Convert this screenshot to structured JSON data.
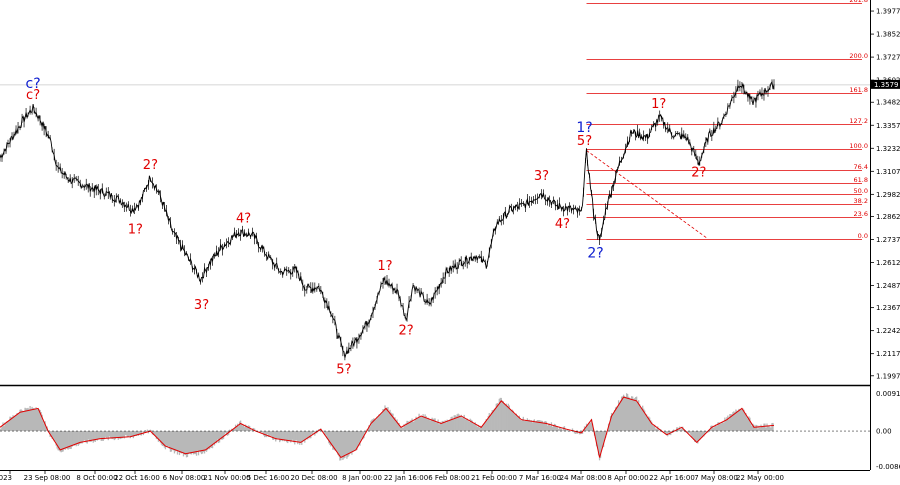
{
  "chart_data": {
    "type": "line",
    "colors": {
      "price": "#000000",
      "fib": "#e00000",
      "wave_red": "#e00000",
      "wave_blue": "#1020d0",
      "current_price_box": "#000000",
      "histogram": "#b8b8b8",
      "signal": "#e00000"
    },
    "price_axis": {
      "ticks": [
        "1.3977",
        "1.3852",
        "1.3727",
        "1.3602",
        "1.3482",
        "1.3357",
        "1.3232",
        "1.3107",
        "1.2982",
        "1.2862",
        "1.2737",
        "1.2612",
        "1.2487",
        "1.2367",
        "1.2242",
        "1.2117",
        "1.1997"
      ],
      "ylim": [
        1.1947,
        1.4037
      ],
      "current_price": "1.3579"
    },
    "time_axis": {
      "ticks": [
        "2023",
        "23 Sep 08:00",
        "8 Oct 00:00",
        "22 Oct 16:00",
        "6 Nov 08:00",
        "21 Nov 00:00",
        "5 Dec 16:00",
        "20 Dec 08:00",
        "8 Jan 00:00",
        "22 Jan 16:00",
        "6 Feb 08:00",
        "21 Feb 00:00",
        "7 Mar 16:00",
        "24 Mar 08:00",
        "8 Apr 00:00",
        "22 Apr 16:00",
        "7 May 08:00",
        "22 May 00:00"
      ],
      "xlim": [
        0,
        770
      ]
    },
    "price_anchors": [
      [
        0,
        1.318
      ],
      [
        12,
        1.329
      ],
      [
        25,
        1.34
      ],
      [
        33,
        1.345
      ],
      [
        40,
        1.339
      ],
      [
        50,
        1.328
      ],
      [
        58,
        1.312
      ],
      [
        70,
        1.306
      ],
      [
        90,
        1.302
      ],
      [
        105,
        1.299
      ],
      [
        120,
        1.295
      ],
      [
        132,
        1.29
      ],
      [
        140,
        1.294
      ],
      [
        150,
        1.308
      ],
      [
        160,
        1.297
      ],
      [
        172,
        1.278
      ],
      [
        185,
        1.266
      ],
      [
        200,
        1.252
      ],
      [
        208,
        1.26
      ],
      [
        220,
        1.269
      ],
      [
        238,
        1.278
      ],
      [
        252,
        1.276
      ],
      [
        265,
        1.266
      ],
      [
        280,
        1.256
      ],
      [
        295,
        1.257
      ],
      [
        305,
        1.247
      ],
      [
        318,
        1.248
      ],
      [
        330,
        1.235
      ],
      [
        343,
        1.211
      ],
      [
        355,
        1.219
      ],
      [
        368,
        1.23
      ],
      [
        383,
        1.252
      ],
      [
        397,
        1.245
      ],
      [
        405,
        1.231
      ],
      [
        412,
        1.249
      ],
      [
        428,
        1.238
      ],
      [
        445,
        1.256
      ],
      [
        462,
        1.262
      ],
      [
        475,
        1.265
      ],
      [
        485,
        1.26
      ],
      [
        495,
        1.282
      ],
      [
        510,
        1.29
      ],
      [
        525,
        1.293
      ],
      [
        540,
        1.299
      ],
      [
        555,
        1.292
      ],
      [
        570,
        1.29
      ],
      [
        580,
        1.288
      ],
      [
        585,
        1.321
      ],
      [
        592,
        1.289
      ],
      [
        598,
        1.272
      ],
      [
        605,
        1.292
      ],
      [
        618,
        1.315
      ],
      [
        630,
        1.332
      ],
      [
        645,
        1.329
      ],
      [
        658,
        1.34
      ],
      [
        670,
        1.331
      ],
      [
        685,
        1.329
      ],
      [
        697,
        1.315
      ],
      [
        707,
        1.33
      ],
      [
        720,
        1.338
      ],
      [
        738,
        1.359
      ],
      [
        750,
        1.348
      ],
      [
        760,
        1.353
      ],
      [
        772,
        1.3579
      ]
    ],
    "oscillator": {
      "ticks": [
        "0.0091",
        "0.00",
        "-0.00862"
      ],
      "ylim": [
        -0.0095,
        0.0105
      ],
      "anchors": [
        [
          0,
          0.001
        ],
        [
          20,
          0.005
        ],
        [
          38,
          0.006
        ],
        [
          48,
          0.0
        ],
        [
          60,
          -0.005
        ],
        [
          80,
          -0.003
        ],
        [
          100,
          -0.002
        ],
        [
          130,
          -0.0015
        ],
        [
          150,
          0.0
        ],
        [
          165,
          -0.004
        ],
        [
          185,
          -0.006
        ],
        [
          205,
          -0.005
        ],
        [
          225,
          -0.001
        ],
        [
          240,
          0.002
        ],
        [
          255,
          0.0
        ],
        [
          275,
          -0.002
        ],
        [
          300,
          -0.003
        ],
        [
          320,
          0.0005
        ],
        [
          340,
          -0.007
        ],
        [
          355,
          -0.005
        ],
        [
          370,
          0.002
        ],
        [
          385,
          0.006
        ],
        [
          400,
          0.001
        ],
        [
          420,
          0.004
        ],
        [
          440,
          0.002
        ],
        [
          460,
          0.004
        ],
        [
          480,
          0.001
        ],
        [
          500,
          0.008
        ],
        [
          520,
          0.003
        ],
        [
          545,
          0.002
        ],
        [
          565,
          0.0005
        ],
        [
          580,
          -0.0005
        ],
        [
          590,
          0.003
        ],
        [
          598,
          -0.007
        ],
        [
          610,
          0.004
        ],
        [
          622,
          0.009
        ],
        [
          635,
          0.008
        ],
        [
          650,
          0.002
        ],
        [
          665,
          -0.001
        ],
        [
          680,
          0.001
        ],
        [
          695,
          -0.003
        ],
        [
          710,
          0.001
        ],
        [
          725,
          0.003
        ],
        [
          740,
          0.006
        ],
        [
          752,
          0.001
        ],
        [
          772,
          0.0015
        ]
      ]
    },
    "fib_levels": [
      {
        "label": "261.8",
        "price": 1.402
      },
      {
        "label": "200.0",
        "price": 1.3718
      },
      {
        "label": "161.8",
        "price": 1.3531
      },
      {
        "label": "127.2",
        "price": 1.3362
      },
      {
        "label": "100.0",
        "price": 1.323
      },
      {
        "label": "76.4",
        "price": 1.3115
      },
      {
        "label": "61.8",
        "price": 1.3043
      },
      {
        "label": "50.0",
        "price": 1.2985
      },
      {
        "label": "38.2",
        "price": 1.2928
      },
      {
        "label": "23.6",
        "price": 1.2857
      },
      {
        "label": "0.0",
        "price": 1.2742
      }
    ],
    "fib_range": {
      "x_start": 585,
      "x_end": 862
    },
    "fib_trend_line": {
      "x1": 585,
      "p1": 1.322,
      "x2": 705,
      "p2": 1.2745
    },
    "wave_labels": [
      {
        "text": "c?",
        "x": 33,
        "price": 1.356,
        "color": "blue"
      },
      {
        "text": "c?",
        "x": 33,
        "price": 1.35,
        "color": "red"
      },
      {
        "text": "2?",
        "x": 150,
        "price": 1.312,
        "color": "red"
      },
      {
        "text": "1?",
        "x": 135,
        "price": 1.277,
        "color": "red"
      },
      {
        "text": "4?",
        "x": 243,
        "price": 1.283,
        "color": "red"
      },
      {
        "text": "3?",
        "x": 201,
        "price": 1.236,
        "color": "red"
      },
      {
        "text": "1?",
        "x": 384,
        "price": 1.257,
        "color": "red"
      },
      {
        "text": "2?",
        "x": 405,
        "price": 1.222,
        "color": "red"
      },
      {
        "text": "5?",
        "x": 343,
        "price": 1.201,
        "color": "red"
      },
      {
        "text": "3?",
        "x": 540,
        "price": 1.306,
        "color": "red"
      },
      {
        "text": "4?",
        "x": 561,
        "price": 1.28,
        "color": "red"
      },
      {
        "text": "1?",
        "x": 583,
        "price": 1.332,
        "color": "blue"
      },
      {
        "text": "5?",
        "x": 583,
        "price": 1.325,
        "color": "red"
      },
      {
        "text": "2?",
        "x": 594,
        "price": 1.264,
        "color": "blue"
      },
      {
        "text": "1?",
        "x": 657,
        "price": 1.345,
        "color": "red"
      },
      {
        "text": "2?",
        "x": 697,
        "price": 1.308,
        "color": "red"
      }
    ]
  }
}
